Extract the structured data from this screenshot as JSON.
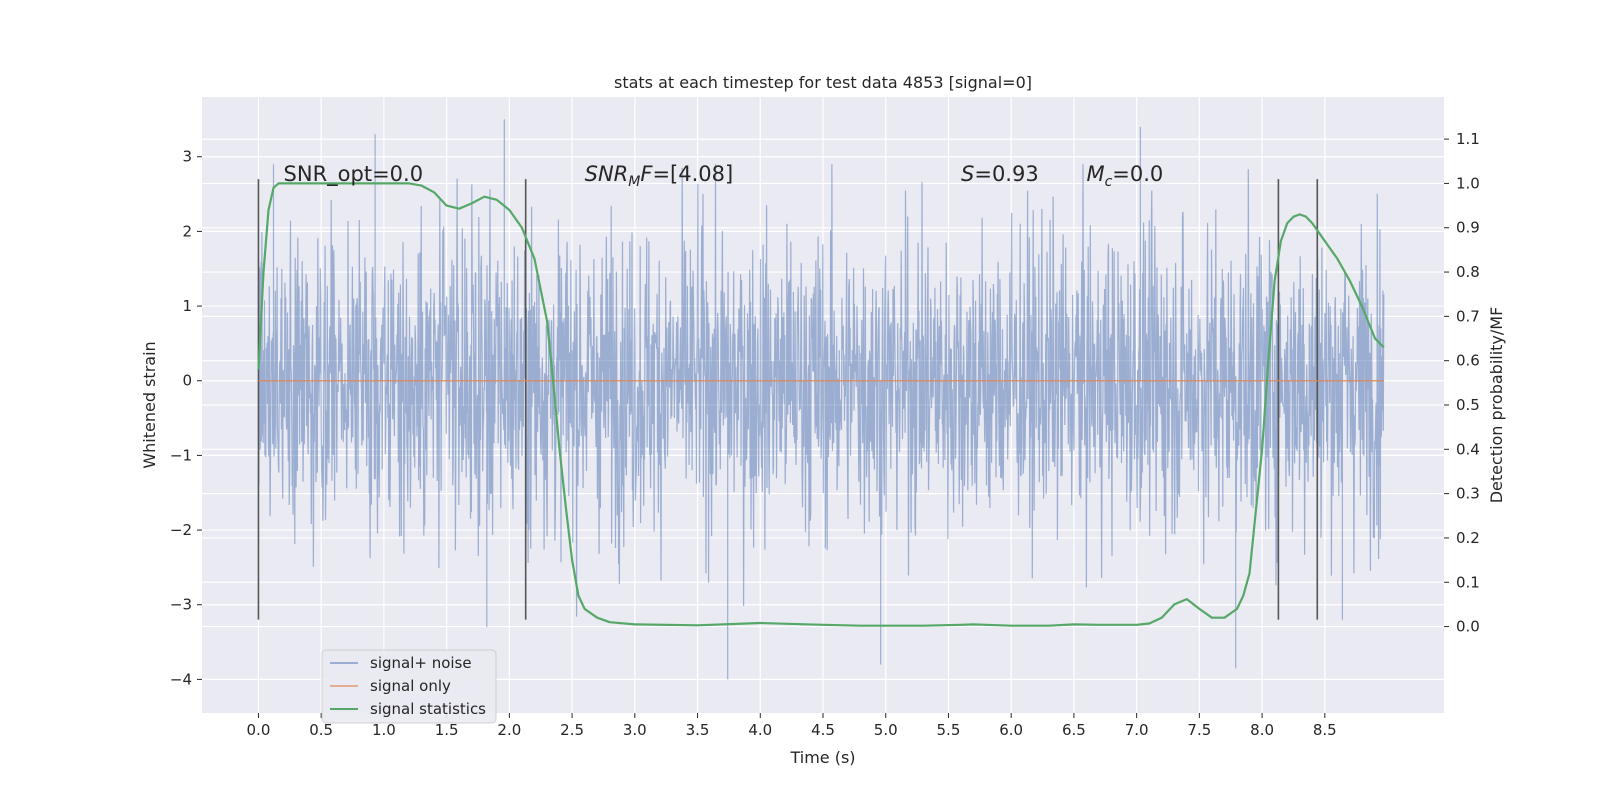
{
  "chart_data": {
    "type": "line",
    "title": "stats at each timestep for test data 4853 [signal=0]",
    "xlabel": "Time (s)",
    "ylabel": "Whitened strain",
    "y2label": "Detection probability/MF",
    "xlim": [
      -0.45,
      9.45
    ],
    "ylim": [
      -4.45,
      3.8
    ],
    "y2lim": [
      -0.195,
      1.195
    ],
    "xticks": [
      0.0,
      0.5,
      1.0,
      1.5,
      2.0,
      2.5,
      3.0,
      3.5,
      4.0,
      4.5,
      5.0,
      5.5,
      6.0,
      6.5,
      7.0,
      7.5,
      8.0,
      8.5
    ],
    "xtick_labels": [
      "0.0",
      "0.5",
      "1.0",
      "1.5",
      "2.0",
      "2.5",
      "3.0",
      "3.5",
      "4.0",
      "4.5",
      "5.0",
      "5.5",
      "6.0",
      "6.5",
      "7.0",
      "7.5",
      "8.0",
      "8.5"
    ],
    "yticks": [
      -4,
      -3,
      -2,
      -1,
      0,
      1,
      2,
      3
    ],
    "ytick_labels": [
      "−4",
      "−3",
      "−2",
      "−1",
      "0",
      "1",
      "2",
      "3"
    ],
    "y2ticks": [
      0.0,
      0.1,
      0.2,
      0.3,
      0.4,
      0.5,
      0.6,
      0.7,
      0.8,
      0.9,
      1.0,
      1.1
    ],
    "y2tick_labels": [
      "0.0",
      "0.1",
      "0.2",
      "0.3",
      "0.4",
      "0.5",
      "0.6",
      "0.7",
      "0.8",
      "0.9",
      "1.0",
      "1.1"
    ],
    "grid": true,
    "legend_position": "lower-left",
    "annotations": [
      {
        "text": "SNR_opt=0.0",
        "x": 0.2,
        "y": 2.78
      },
      {
        "text": "SNR",
        "sub": "M",
        "suffix": "F=[4.08]",
        "italic": true,
        "x": 2.6,
        "y": 2.78
      },
      {
        "text": "S",
        "suffix": "=0.93",
        "italic": true,
        "x": 5.6,
        "y": 2.78
      },
      {
        "text": "M",
        "sub": "c",
        "suffix": "=0.0",
        "italic": true,
        "x": 6.6,
        "y": 2.78
      }
    ],
    "vertical_markers": {
      "x": [
        0.0,
        2.13,
        8.13,
        8.44
      ],
      "y_range": [
        -3.2,
        2.7
      ],
      "color": "#555555"
    },
    "series": [
      {
        "name": "signal+ noise",
        "color": "#4c72b0",
        "kind": "noise",
        "x_range": [
          0.0,
          8.97
        ],
        "typical_amplitude": 1.0,
        "peak_high": 3.5,
        "peak_low": -4.0
      },
      {
        "name": "signal only",
        "color": "#dd8452",
        "x": [
          0.0,
          8.97
        ],
        "values": [
          0.0,
          0.0
        ]
      },
      {
        "name": "signal statistics",
        "color": "#55a868",
        "axis": "right",
        "x": [
          0.0,
          0.04,
          0.08,
          0.12,
          0.16,
          0.2,
          0.3,
          0.5,
          0.8,
          1.0,
          1.2,
          1.3,
          1.4,
          1.5,
          1.6,
          1.7,
          1.8,
          1.9,
          2.0,
          2.1,
          2.2,
          2.3,
          2.35,
          2.4,
          2.45,
          2.5,
          2.55,
          2.6,
          2.65,
          2.7,
          2.8,
          3.0,
          3.5,
          4.0,
          4.5,
          4.8,
          5.0,
          5.3,
          5.6,
          5.7,
          5.8,
          6.0,
          6.3,
          6.5,
          6.7,
          7.0,
          7.1,
          7.2,
          7.3,
          7.4,
          7.5,
          7.6,
          7.7,
          7.8,
          7.85,
          7.9,
          8.0,
          8.05,
          8.1,
          8.15,
          8.2,
          8.25,
          8.3,
          8.35,
          8.4,
          8.5,
          8.6,
          8.7,
          8.8,
          8.9,
          8.97
        ],
        "values": [
          0.58,
          0.8,
          0.94,
          0.99,
          1.0,
          1.0,
          1.0,
          1.0,
          1.0,
          1.0,
          1.0,
          0.995,
          0.98,
          0.95,
          0.943,
          0.955,
          0.97,
          0.963,
          0.94,
          0.9,
          0.83,
          0.69,
          0.55,
          0.4,
          0.27,
          0.15,
          0.07,
          0.04,
          0.03,
          0.02,
          0.01,
          0.005,
          0.003,
          0.008,
          0.004,
          0.002,
          0.002,
          0.002,
          0.004,
          0.005,
          0.004,
          0.002,
          0.002,
          0.005,
          0.004,
          0.004,
          0.007,
          0.02,
          0.05,
          0.062,
          0.04,
          0.02,
          0.02,
          0.04,
          0.07,
          0.12,
          0.4,
          0.6,
          0.78,
          0.87,
          0.91,
          0.925,
          0.93,
          0.925,
          0.91,
          0.87,
          0.83,
          0.78,
          0.72,
          0.65,
          0.63
        ]
      }
    ]
  }
}
